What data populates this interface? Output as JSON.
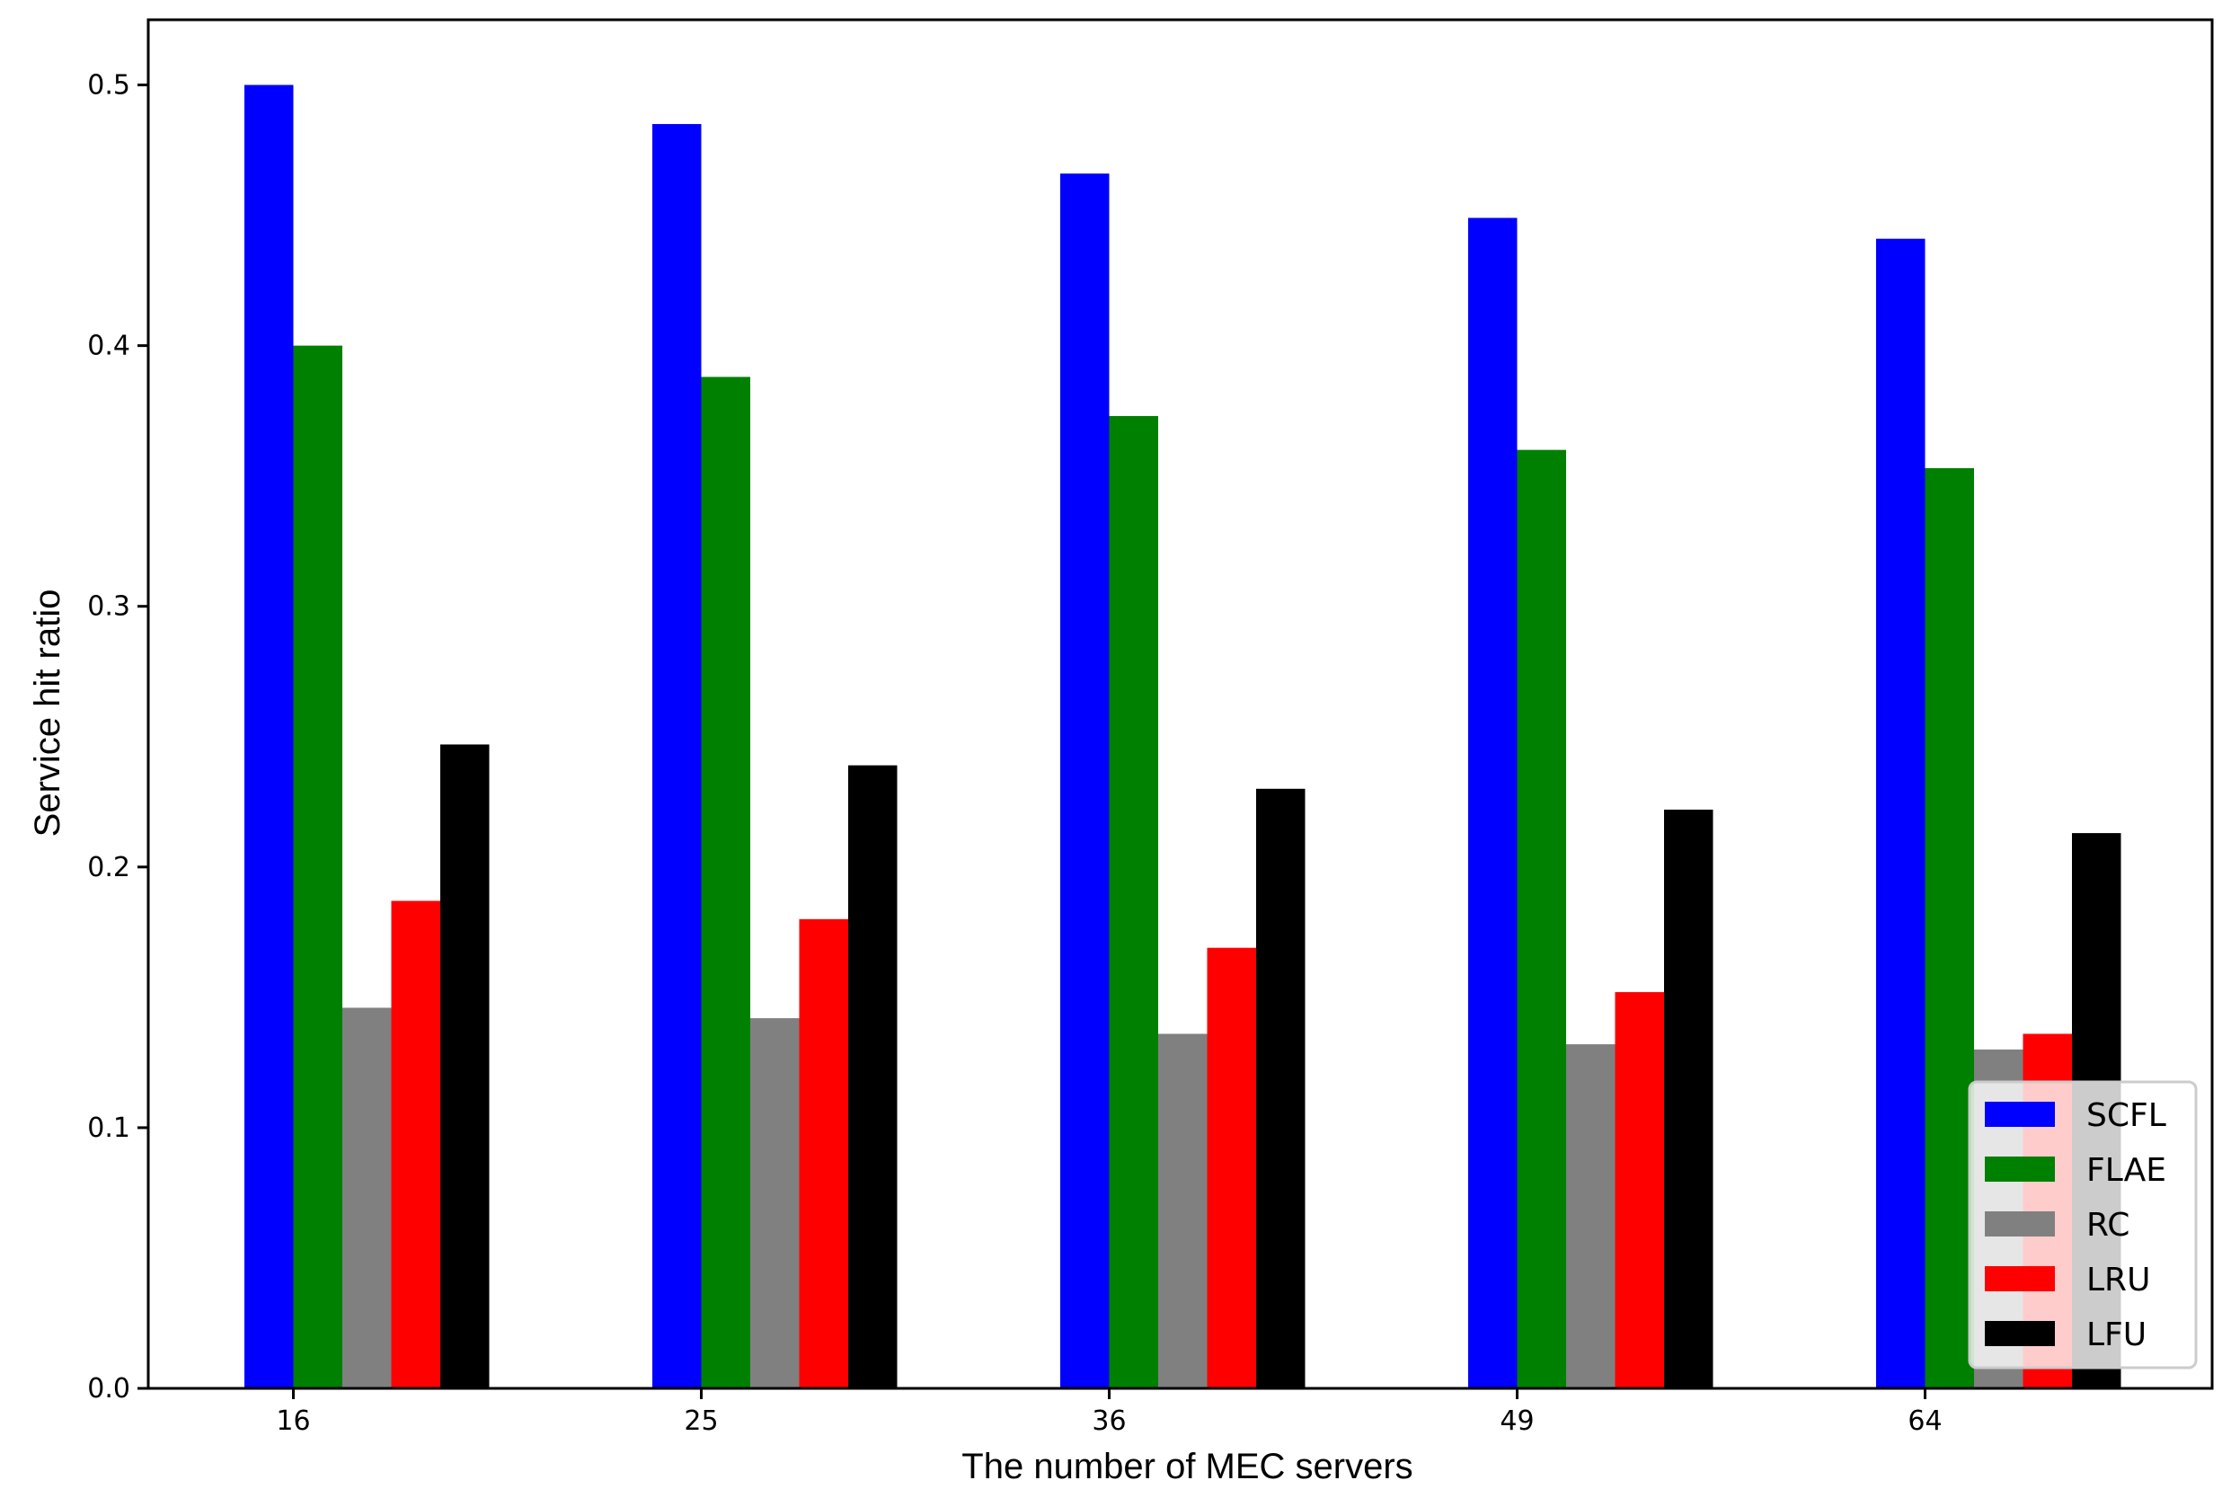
{
  "chart_data": {
    "type": "bar",
    "xlabel": "The number of MEC servers",
    "ylabel": "Service hit ratio",
    "categories": [
      "16",
      "25",
      "36",
      "49",
      "64"
    ],
    "ylim": [
      0,
      0.525
    ],
    "yticks": [
      0.0,
      0.1,
      0.2,
      0.3,
      0.4,
      0.5
    ],
    "ytick_labels": [
      "0.0",
      "0.1",
      "0.2",
      "0.3",
      "0.4",
      "0.5"
    ],
    "grid": false,
    "legend_position": "lower right",
    "series": [
      {
        "name": "SCFL",
        "color": "#0000ff",
        "values": [
          0.5,
          0.485,
          0.466,
          0.449,
          0.441
        ]
      },
      {
        "name": "FLAE",
        "color": "#008000",
        "values": [
          0.4,
          0.388,
          0.373,
          0.36,
          0.353
        ]
      },
      {
        "name": "RC",
        "color": "#808080",
        "values": [
          0.146,
          0.142,
          0.136,
          0.132,
          0.13
        ]
      },
      {
        "name": "LRU",
        "color": "#ff0000",
        "values": [
          0.187,
          0.18,
          0.169,
          0.152,
          0.136
        ]
      },
      {
        "name": "LFU",
        "color": "#000000",
        "values": [
          0.247,
          0.239,
          0.23,
          0.222,
          0.213
        ]
      }
    ]
  }
}
